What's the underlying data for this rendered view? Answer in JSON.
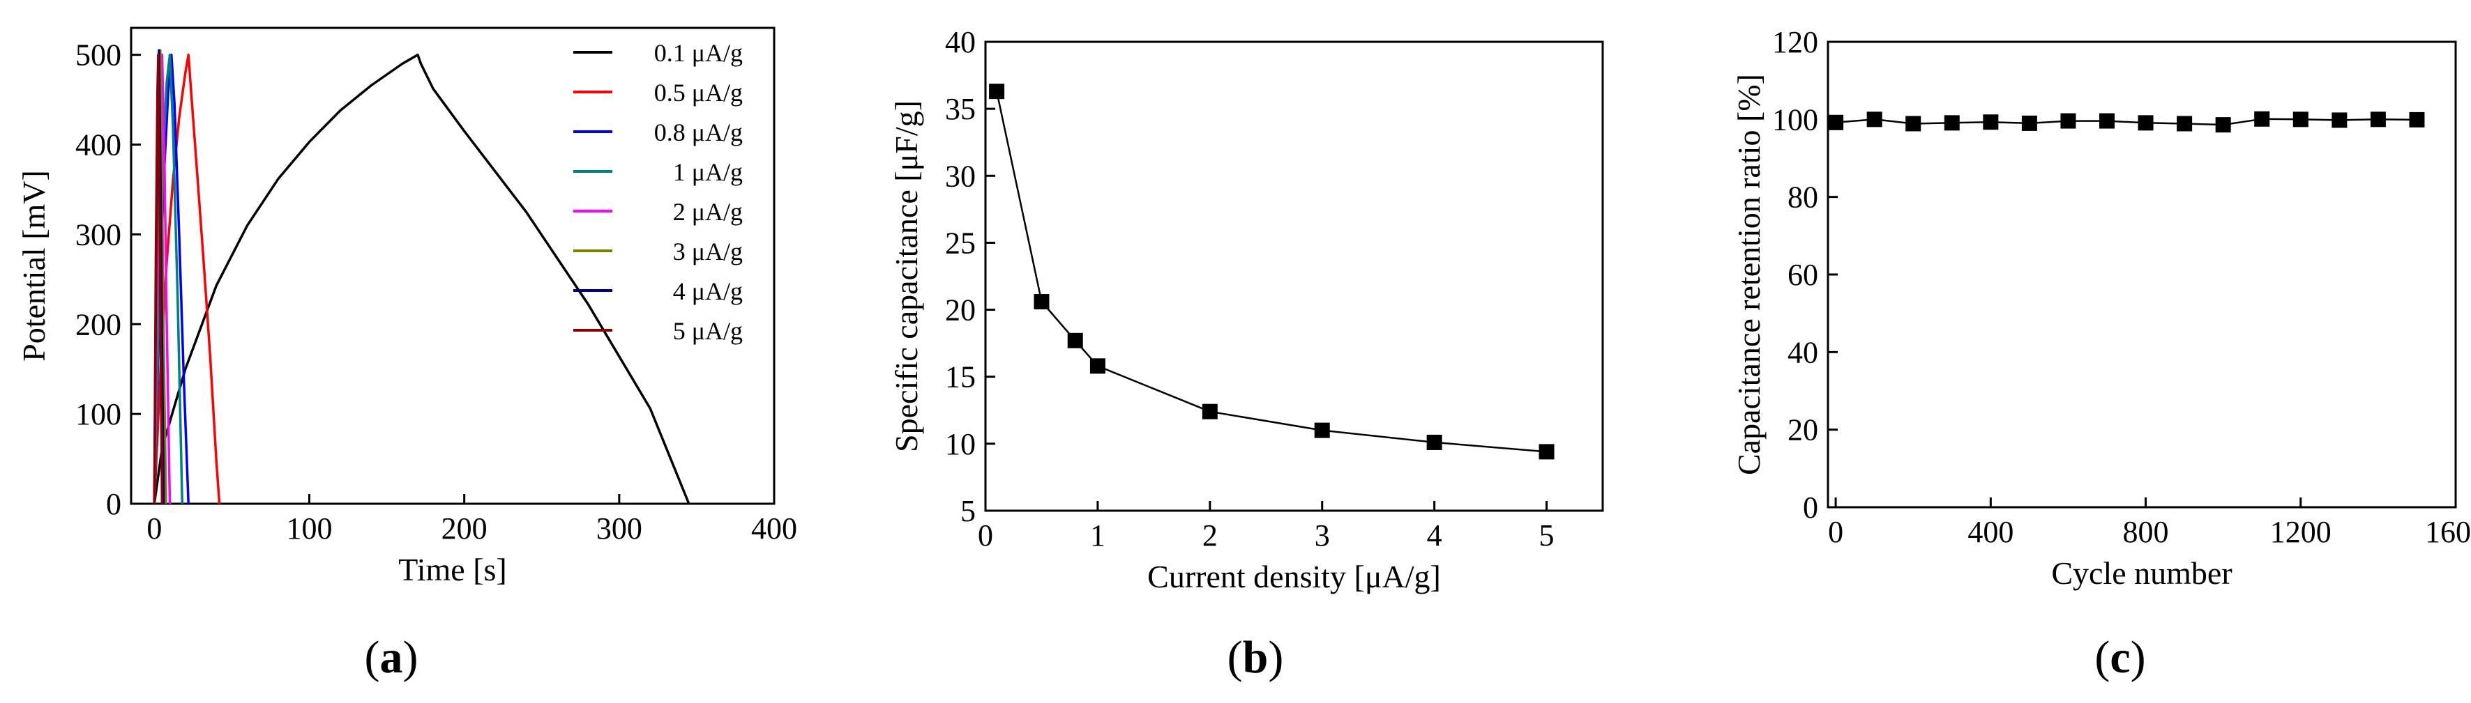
{
  "chart_data": [
    {
      "panel_label": "a",
      "type": "line",
      "xlabel": "Time [s]",
      "ylabel": "Potential [mV]",
      "xlim": [
        -15,
        400
      ],
      "ylim": [
        0,
        530
      ],
      "xticks": [
        0,
        100,
        200,
        300,
        400
      ],
      "yticks": [
        0,
        100,
        200,
        300,
        400,
        500
      ],
      "legend_position": "top-right",
      "series": [
        {
          "name": "0.1 μA/g",
          "color": "#000000",
          "x": [
            0,
            5,
            20,
            40,
            60,
            80,
            100,
            120,
            140,
            160,
            170,
            172,
            180,
            200,
            240,
            280,
            320,
            345
          ],
          "y": [
            0,
            62,
            150,
            243,
            310,
            362,
            403,
            438,
            466,
            490,
            500,
            490,
            462,
            415,
            325,
            222,
            106,
            0
          ]
        },
        {
          "name": "0.5 μA/g",
          "color": "#ff0000",
          "x": [
            0,
            4,
            8,
            12,
            16,
            20,
            22,
            24,
            28,
            32,
            36,
            40,
            42
          ],
          "y": [
            0,
            150,
            270,
            360,
            430,
            480,
            500,
            453,
            360,
            265,
            165,
            48,
            0
          ]
        },
        {
          "name": "0.8 μA/g",
          "color": "#0000ff",
          "x": [
            0,
            3,
            6,
            9,
            11,
            13,
            16,
            19,
            22
          ],
          "y": [
            0,
            200,
            360,
            460,
            500,
            445,
            300,
            140,
            0
          ]
        },
        {
          "name": "1 μA/g",
          "color": "#008080",
          "x": [
            0,
            3,
            6,
            8,
            10,
            12,
            15,
            18
          ],
          "y": [
            0,
            230,
            400,
            470,
            500,
            420,
            230,
            0
          ]
        },
        {
          "name": "2 μA/g",
          "color": "#ff00ff",
          "x": [
            0,
            2,
            4,
            5,
            6.5,
            8,
            10
          ],
          "y": [
            0,
            260,
            440,
            500,
            380,
            200,
            0
          ]
        },
        {
          "name": "3 μA/g",
          "color": "#808000",
          "x": [
            0,
            1.5,
            3,
            3.8,
            4.8,
            6,
            7.5
          ],
          "y": [
            0,
            270,
            460,
            505,
            380,
            180,
            0
          ]
        },
        {
          "name": "4 μA/g",
          "color": "#00008b",
          "x": [
            0,
            1.2,
            2.4,
            3,
            4,
            5,
            6
          ],
          "y": [
            0,
            280,
            460,
            505,
            360,
            170,
            0
          ]
        },
        {
          "name": "5 μA/g",
          "color": "#8b0000",
          "x": [
            0,
            1,
            2,
            2.5,
            3.2,
            4,
            5
          ],
          "y": [
            0,
            280,
            460,
            500,
            380,
            200,
            0
          ]
        }
      ]
    },
    {
      "panel_label": "b",
      "type": "line",
      "xlabel": "Current density [μA/g]",
      "ylabel": "Specific capacitance [μF/g]",
      "xlim": [
        0,
        5.5
      ],
      "ylim": [
        5,
        40
      ],
      "xticks": [
        0,
        1,
        2,
        3,
        4,
        5
      ],
      "yticks": [
        5,
        10,
        15,
        20,
        25,
        30,
        35,
        40
      ],
      "marker": "square",
      "series": [
        {
          "color": "#000000",
          "x": [
            0.1,
            0.5,
            0.8,
            1,
            2,
            3,
            4,
            5
          ],
          "y": [
            36.3,
            20.6,
            17.7,
            15.8,
            12.4,
            11.0,
            10.1,
            9.4
          ]
        }
      ]
    },
    {
      "panel_label": "c",
      "type": "line",
      "xlabel": "Cycle number",
      "ylabel": "Capacitance retention ratio [%]",
      "xlim": [
        -20,
        1600
      ],
      "ylim": [
        0,
        120
      ],
      "xticks": [
        0,
        400,
        800,
        1200,
        1600
      ],
      "yticks": [
        0,
        20,
        40,
        60,
        80,
        100,
        120
      ],
      "marker": "square",
      "series": [
        {
          "color": "#000000",
          "x": [
            0,
            100,
            200,
            300,
            400,
            500,
            600,
            700,
            800,
            900,
            1000,
            1100,
            1200,
            1300,
            1400,
            1500
          ],
          "y": [
            99.2,
            100.0,
            98.9,
            99.1,
            99.3,
            99.0,
            99.6,
            99.6,
            99.1,
            98.9,
            98.6,
            100.1,
            100.0,
            99.8,
            100.0,
            99.9
          ]
        }
      ]
    }
  ]
}
